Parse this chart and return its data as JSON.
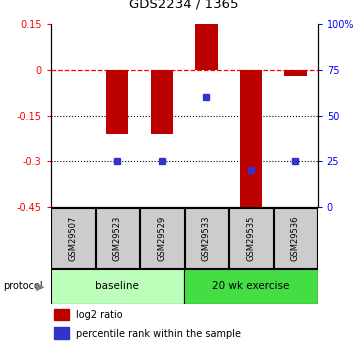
{
  "title": "GDS2234 / 1365",
  "samples": [
    "GSM29507",
    "GSM29523",
    "GSM29529",
    "GSM29533",
    "GSM29535",
    "GSM29536"
  ],
  "log2_ratio": [
    0.0,
    -0.21,
    -0.21,
    0.15,
    -0.45,
    -0.02
  ],
  "percentile_rank": [
    null,
    25,
    25,
    60,
    20,
    25
  ],
  "ylim_left": [
    -0.45,
    0.15
  ],
  "yticks_left": [
    0.15,
    0.0,
    -0.15,
    -0.3,
    -0.45
  ],
  "ytick_labels_left": [
    "0.15",
    "0",
    "-0.15",
    "-0.3",
    "-0.45"
  ],
  "yticks_right_pct": [
    100,
    75,
    50,
    25,
    0
  ],
  "ytick_labels_right": [
    "100%",
    "75",
    "50",
    "25",
    "0"
  ],
  "bar_color": "#bb0000",
  "dot_color": "#3333cc",
  "bar_width": 0.5,
  "baseline_color": "#bbffbb",
  "exercise_color": "#44dd44",
  "legend_red_label": "log2 ratio",
  "legend_blue_label": "percentile rank within the sample",
  "background_color": "#ffffff",
  "gray_box_color": "#cccccc"
}
